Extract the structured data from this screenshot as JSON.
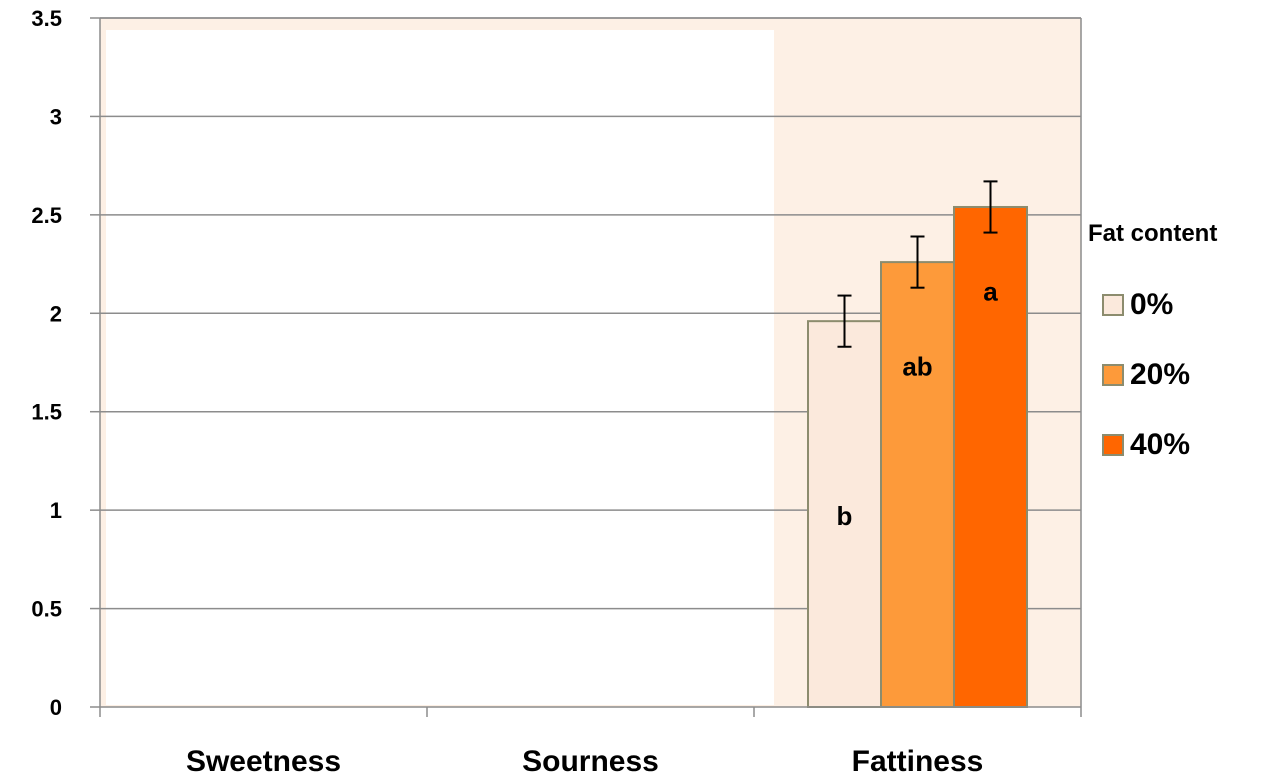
{
  "chart_data": {
    "type": "bar",
    "categories": [
      "Sweetness",
      "Sourness",
      "Fattiness"
    ],
    "series": [
      {
        "name": "0%",
        "values": [
          0,
          0,
          1.96
        ],
        "errors": [
          0,
          0,
          0.13
        ],
        "sig": [
          "",
          "",
          "b"
        ],
        "color": "#fbe9dc"
      },
      {
        "name": "20%",
        "values": [
          0,
          0,
          2.26
        ],
        "errors": [
          0,
          0,
          0.13
        ],
        "sig": [
          "",
          "",
          "ab"
        ],
        "color": "#fd9a3a"
      },
      {
        "name": "40%",
        "values": [
          0,
          0,
          2.54
        ],
        "errors": [
          0,
          0,
          0.13
        ],
        "sig": [
          "",
          "",
          "a"
        ],
        "color": "#ff6600"
      }
    ],
    "ylim": [
      0,
      3.5
    ],
    "yticks": [
      "0",
      "0.5",
      "1",
      "1.5",
      "2",
      "2.5",
      "3",
      "3.5"
    ],
    "grid": true,
    "legend_title": "Fat content",
    "legend_position": "right",
    "plot_background": "#fdf0e5",
    "bar_border": "#8c8c6e"
  }
}
